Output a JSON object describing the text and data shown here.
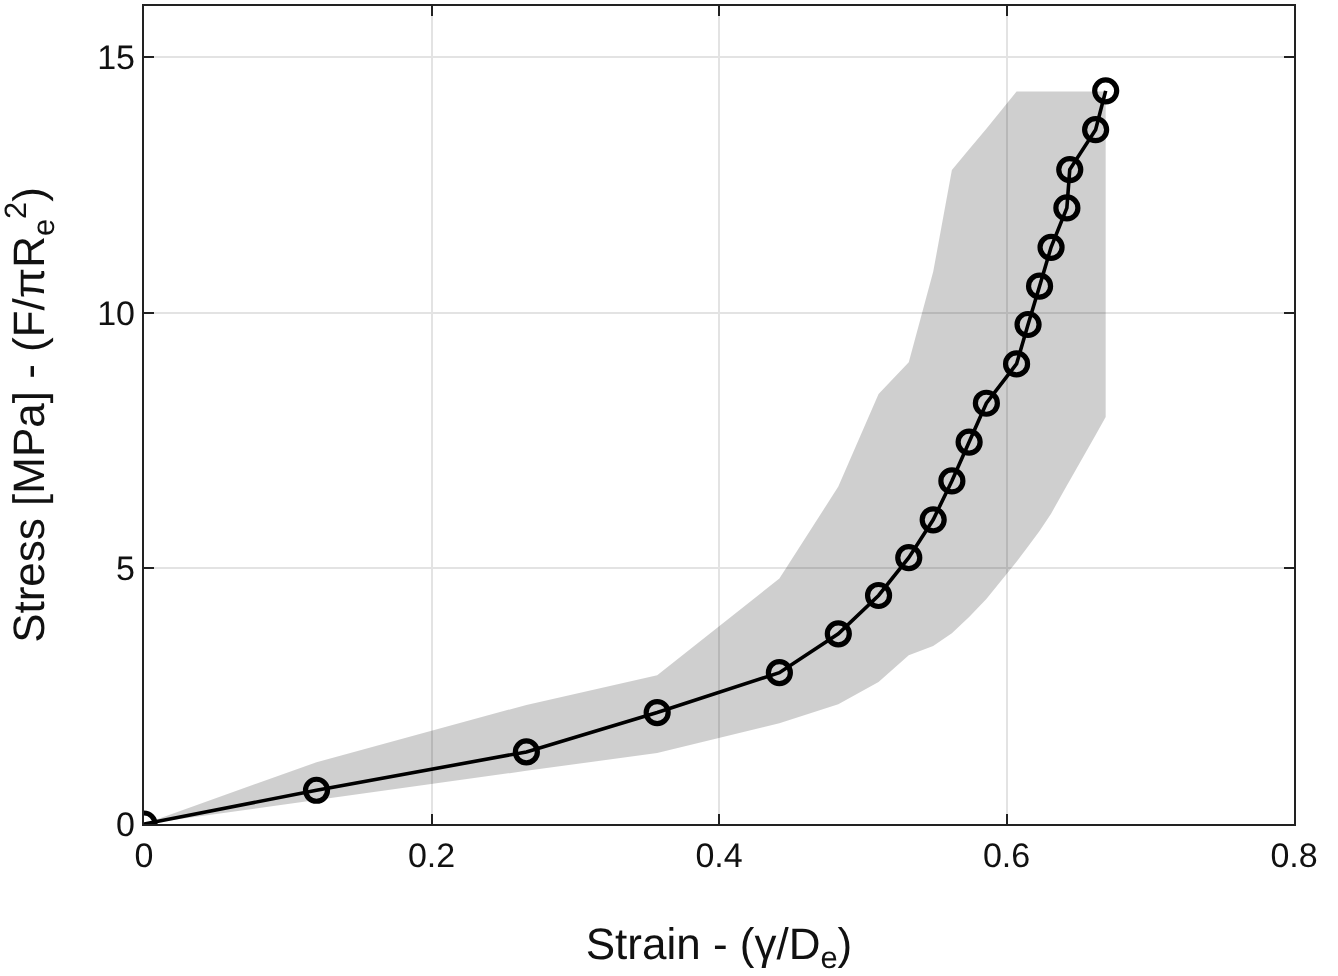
{
  "chart_data": {
    "type": "line",
    "xlabel": "Strain - (γ/D$_{e}$)",
    "ylabel": "Stress [MPa] - (F/πR$_{e}$$^{2}$)",
    "xlim": [
      0,
      0.8
    ],
    "xticks": [
      0,
      0.2,
      0.4,
      0.6,
      0.8
    ],
    "ylim": [
      0,
      16
    ],
    "yticks": [
      0,
      5,
      10,
      15
    ],
    "grid": true,
    "marker": "circle",
    "line_style": "solid",
    "series": [
      {
        "color": "#000000",
        "x": [
          0,
          0.12,
          0.266,
          0.357,
          0.442,
          0.483,
          0.511,
          0.532,
          0.549,
          0.562,
          0.574,
          0.586,
          0.607,
          0.615,
          0.623,
          0.631,
          0.642,
          0.644,
          0.662,
          0.669
        ],
        "values": [
          0,
          0.66,
          1.41,
          2.18,
          2.96,
          3.72,
          4.47,
          5.21,
          5.95,
          6.71,
          7.47,
          8.23,
          9.0,
          9.77,
          10.52,
          11.28,
          12.05,
          12.8,
          13.58,
          14.34
        ],
        "lower": [
          0,
          0.47,
          1.04,
          1.39,
          1.97,
          2.34,
          2.78,
          3.3,
          3.48,
          3.73,
          4.05,
          4.4,
          5.13,
          5.43,
          5.73,
          6.07,
          6.62,
          6.72,
          7.61,
          7.96
        ],
        "upper": [
          0,
          1.21,
          2.33,
          2.91,
          4.8,
          6.6,
          8.41,
          9.03,
          10.8,
          12.79,
          13.2,
          13.6,
          14.33,
          14.33,
          14.33,
          14.33,
          14.33,
          14.33,
          14.33,
          14.33
        ]
      }
    ]
  }
}
